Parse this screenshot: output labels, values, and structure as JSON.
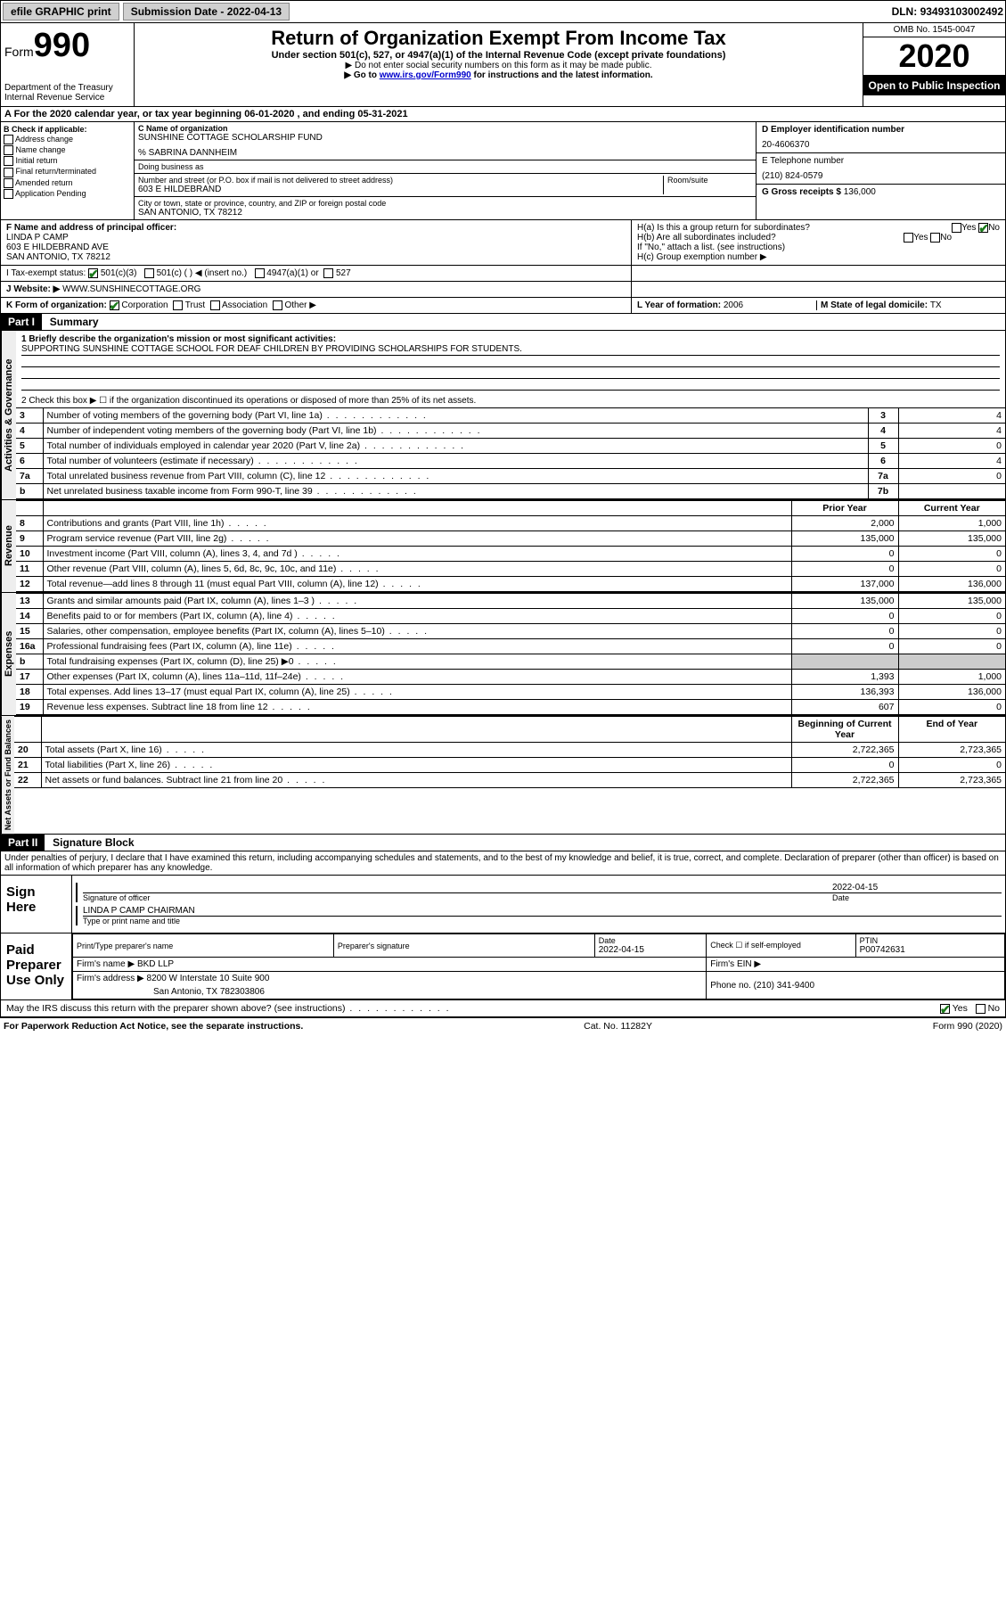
{
  "topbar": {
    "efile": "efile GRAPHIC print",
    "submission_label": "Submission Date - ",
    "submission_date": "2022-04-13",
    "dln_label": "DLN: ",
    "dln": "93493103002492"
  },
  "header": {
    "form_prefix": "Form",
    "form_number": "990",
    "dept": "Department of the Treasury\nInternal Revenue Service",
    "title": "Return of Organization Exempt From Income Tax",
    "sub1": "Under section 501(c), 527, or 4947(a)(1) of the Internal Revenue Code (except private foundations)",
    "sub2": "▶ Do not enter social security numbers on this form as it may be made public.",
    "sub3_pre": "▶ Go to ",
    "sub3_link": "www.irs.gov/Form990",
    "sub3_post": " for instructions and the latest information.",
    "omb": "OMB No. 1545-0047",
    "year": "2020",
    "open": "Open to Public Inspection"
  },
  "row_a": "A For the 2020 calendar year, or tax year beginning 06-01-2020     , and ending 05-31-2021",
  "col_b": {
    "title": "B Check if applicable:",
    "opts": [
      "Address change",
      "Name change",
      "Initial return",
      "Final return/terminated",
      "Amended return",
      "Application Pending"
    ]
  },
  "col_c": {
    "c_label": "C Name of organization",
    "c_name": "SUNSHINE COTTAGE SCHOLARSHIP FUND",
    "care_of": "% SABRINA DANNHEIM",
    "dba_label": "Doing business as",
    "addr_label": "Number and street (or P.O. box if mail is not delivered to street address)",
    "room_label": "Room/suite",
    "addr": "603 E HILDEBRAND",
    "city_label": "City or town, state or province, country, and ZIP or foreign postal code",
    "city": "SAN ANTONIO, TX  78212"
  },
  "col_d": {
    "d_label": "D Employer identification number",
    "d_val": "20-4606370",
    "e_label": "E Telephone number",
    "e_val": "(210) 824-0579",
    "g_label": "G Gross receipts $ ",
    "g_val": "136,000"
  },
  "row_f": {
    "f_label": "F  Name and address of principal officer:",
    "f_name": "LINDA P CAMP",
    "f_addr1": "603 E HILDEBRAND AVE",
    "f_addr2": "SAN ANTONIO, TX  78212",
    "ha": "H(a)  Is this a group return for subordinates?",
    "hb": "H(b)  Are all subordinates included?",
    "hb_note": "If \"No,\" attach a list. (see instructions)",
    "hc": "H(c)  Group exemption number ▶",
    "yes": "Yes",
    "no": "No"
  },
  "row_i": {
    "label": "I   Tax-exempt status:",
    "o1": "501(c)(3)",
    "o2": "501(c) (   ) ◀ (insert no.)",
    "o3": "4947(a)(1) or",
    "o4": "527"
  },
  "row_j": {
    "label": "J   Website: ▶",
    "val": "WWW.SUNSHINECOTTAGE.ORG"
  },
  "row_k": {
    "label": "K Form of organization:",
    "o1": "Corporation",
    "o2": "Trust",
    "o3": "Association",
    "o4": "Other ▶",
    "l_label": "L Year of formation: ",
    "l_val": "2006",
    "m_label": "M State of legal domicile: ",
    "m_val": "TX"
  },
  "part1": {
    "header": "Part I",
    "title": "Summary",
    "line1_label": "1   Briefly describe the organization's mission or most significant activities:",
    "line1_val": "SUPPORTING SUNSHINE COTTAGE SCHOOL FOR DEAF CHILDREN BY PROVIDING SCHOLARSHIPS FOR STUDENTS.",
    "line2": "2    Check this box ▶ ☐  if the organization discontinued its operations or disposed of more than 25% of its net assets.",
    "gov_tab": "Activities & Governance",
    "rev_tab": "Revenue",
    "exp_tab": "Expenses",
    "net_tab": "Net Assets or Fund Balances",
    "prior": "Prior Year",
    "current": "Current Year",
    "begin": "Beginning of Current Year",
    "end": "End of Year",
    "rows_gov": [
      {
        "n": "3",
        "d": "Number of voting members of the governing body (Part VI, line 1a)",
        "b": "3",
        "v": "4"
      },
      {
        "n": "4",
        "d": "Number of independent voting members of the governing body (Part VI, line 1b)",
        "b": "4",
        "v": "4"
      },
      {
        "n": "5",
        "d": "Total number of individuals employed in calendar year 2020 (Part V, line 2a)",
        "b": "5",
        "v": "0"
      },
      {
        "n": "6",
        "d": "Total number of volunteers (estimate if necessary)",
        "b": "6",
        "v": "4"
      },
      {
        "n": "7a",
        "d": "Total unrelated business revenue from Part VIII, column (C), line 12",
        "b": "7a",
        "v": "0"
      },
      {
        "n": "b",
        "d": "Net unrelated business taxable income from Form 990-T, line 39",
        "b": "7b",
        "v": ""
      }
    ],
    "rows_rev": [
      {
        "n": "8",
        "d": "Contributions and grants (Part VIII, line 1h)",
        "p": "2,000",
        "c": "1,000"
      },
      {
        "n": "9",
        "d": "Program service revenue (Part VIII, line 2g)",
        "p": "135,000",
        "c": "135,000"
      },
      {
        "n": "10",
        "d": "Investment income (Part VIII, column (A), lines 3, 4, and 7d )",
        "p": "0",
        "c": "0"
      },
      {
        "n": "11",
        "d": "Other revenue (Part VIII, column (A), lines 5, 6d, 8c, 9c, 10c, and 11e)",
        "p": "0",
        "c": "0"
      },
      {
        "n": "12",
        "d": "Total revenue—add lines 8 through 11 (must equal Part VIII, column (A), line 12)",
        "p": "137,000",
        "c": "136,000"
      }
    ],
    "rows_exp": [
      {
        "n": "13",
        "d": "Grants and similar amounts paid (Part IX, column (A), lines 1–3 )",
        "p": "135,000",
        "c": "135,000"
      },
      {
        "n": "14",
        "d": "Benefits paid to or for members (Part IX, column (A), line 4)",
        "p": "0",
        "c": "0"
      },
      {
        "n": "15",
        "d": "Salaries, other compensation, employee benefits (Part IX, column (A), lines 5–10)",
        "p": "0",
        "c": "0"
      },
      {
        "n": "16a",
        "d": "Professional fundraising fees (Part IX, column (A), line 11e)",
        "p": "0",
        "c": "0"
      },
      {
        "n": "b",
        "d": "Total fundraising expenses (Part IX, column (D), line 25) ▶0",
        "p": "",
        "c": "",
        "shade": true
      },
      {
        "n": "17",
        "d": "Other expenses (Part IX, column (A), lines 11a–11d, 11f–24e)",
        "p": "1,393",
        "c": "1,000"
      },
      {
        "n": "18",
        "d": "Total expenses. Add lines 13–17 (must equal Part IX, column (A), line 25)",
        "p": "136,393",
        "c": "136,000"
      },
      {
        "n": "19",
        "d": "Revenue less expenses. Subtract line 18 from line 12",
        "p": "607",
        "c": "0"
      }
    ],
    "rows_net": [
      {
        "n": "20",
        "d": "Total assets (Part X, line 16)",
        "p": "2,722,365",
        "c": "2,723,365"
      },
      {
        "n": "21",
        "d": "Total liabilities (Part X, line 26)",
        "p": "0",
        "c": "0"
      },
      {
        "n": "22",
        "d": "Net assets or fund balances. Subtract line 21 from line 20",
        "p": "2,722,365",
        "c": "2,723,365"
      }
    ]
  },
  "part2": {
    "header": "Part II",
    "title": "Signature Block",
    "decl": "Under penalties of perjury, I declare that I have examined this return, including accompanying schedules and statements, and to the best of my knowledge and belief, it is true, correct, and complete. Declaration of preparer (other than officer) is based on all information of which preparer has any knowledge.",
    "sign_here": "Sign Here",
    "sig_officer": "Signature of officer",
    "sig_date": "2022-04-15",
    "date_label": "Date",
    "officer_name": "LINDA P CAMP  CHAIRMAN",
    "type_name": "Type or print name and title",
    "paid_label": "Paid Preparer Use Only",
    "h1": "Print/Type preparer's name",
    "h2": "Preparer's signature",
    "h3": "Date",
    "h3v": "2022-04-15",
    "h4": "Check ☐ if self-employed",
    "h5": "PTIN",
    "h5v": "P00742631",
    "firm_name_l": "Firm's name    ▶ ",
    "firm_name": "BKD LLP",
    "firm_ein_l": "Firm's EIN ▶",
    "firm_addr_l": "Firm's address ▶ ",
    "firm_addr1": "8200 W Interstate 10 Suite 900",
    "firm_addr2": "San Antonio, TX  782303806",
    "phone_l": "Phone no. ",
    "phone": "(210) 341-9400",
    "discuss": "May the IRS discuss this return with the preparer shown above? (see instructions)",
    "yes": "Yes",
    "no": "No"
  },
  "footer": {
    "left": "For Paperwork Reduction Act Notice, see the separate instructions.",
    "mid": "Cat. No. 11282Y",
    "right": "Form 990 (2020)"
  },
  "colors": {
    "black": "#000000",
    "white": "#ffffff",
    "link": "#0000cc",
    "check": "#1a7a1a",
    "shade": "#cccccc",
    "btn": "#d0d0d0"
  }
}
